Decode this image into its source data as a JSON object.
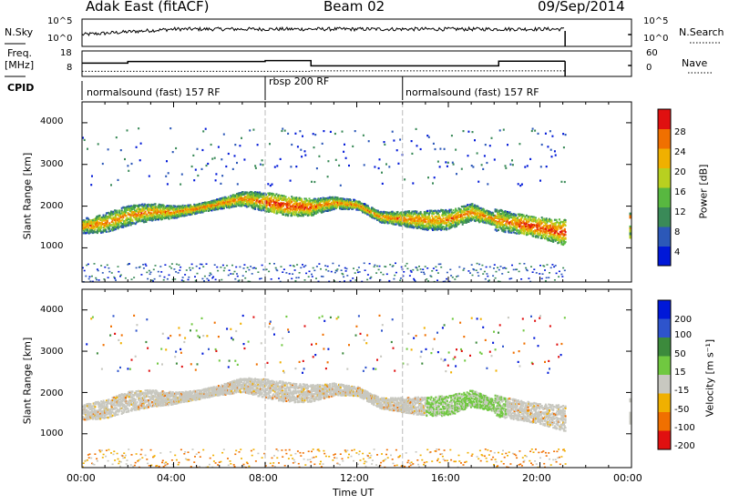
{
  "header": {
    "station": "Adak East (fitACF)",
    "beam": "Beam 02",
    "date": "09/Sep/2014"
  },
  "top_panels": {
    "nsky_label": "N.Sky",
    "nsky_ticks": [
      "10^5",
      "10^0"
    ],
    "nsearch_label": "N.Search",
    "freq_label_1": "Freq.",
    "freq_label_2": "[MHz]",
    "freq_ticks": [
      "18",
      "8"
    ],
    "nave_label": "Nave",
    "nave_ticks": [
      "60",
      "0"
    ],
    "cpid_label": "CPID",
    "cpid_segments": [
      {
        "label": "normalsound (fast) 157 RF",
        "start_h": 0,
        "end_h": 8
      },
      {
        "label": "rbsp 200 RF",
        "start_h": 8,
        "end_h": 14
      },
      {
        "label": "normalsound (fast) 157 RF",
        "start_h": 14,
        "end_h": 21.1
      }
    ],
    "freq_steps_mhz": [
      [
        0,
        13.3
      ],
      [
        2,
        14.2
      ],
      [
        8,
        14.7
      ],
      [
        10,
        11.8
      ],
      [
        18,
        11.8
      ],
      [
        18.2,
        14.4
      ],
      [
        21.1,
        14.4
      ]
    ],
    "nave_level": [
      [
        0,
        12
      ],
      [
        10,
        12
      ],
      [
        10,
        13
      ],
      [
        21.1,
        13
      ]
    ]
  },
  "axes": {
    "x_ticks": [
      "00:00",
      "04:00",
      "08:00",
      "12:00",
      "16:00",
      "20:00",
      "00:00"
    ],
    "x_label": "Time UT",
    "y_label": "Slant Range [km]",
    "y_ticks": [
      "4000",
      "3000",
      "2000",
      "1000"
    ],
    "power_cb_label": "Power [dB]",
    "power_ticks": [
      "28",
      "24",
      "20",
      "16",
      "12",
      "8",
      "4"
    ],
    "velocity_cb_label": "Velocity [m s⁻¹]",
    "velocity_ticks": [
      "200",
      "100",
      "50",
      "15",
      "-15",
      "-50",
      "-100",
      "-200"
    ]
  },
  "colors": {
    "power_scale": [
      "#0018d8",
      "#2c58b8",
      "#3a8a58",
      "#58b840",
      "#b8d020",
      "#f0b000",
      "#f07000",
      "#e01010"
    ],
    "velocity_scale": [
      "#0018d8",
      "#2e54cc",
      "#3c8a3c",
      "#70c840",
      "#c8c8c0",
      "#f0b000",
      "#f07000",
      "#e01010"
    ]
  },
  "chart_data": {
    "type": "heatmap",
    "title": "Adak East (fitACF)",
    "subtitle": "Beam 02",
    "xlabel": "Time UT",
    "ylabel": "Slant Range [km]",
    "x_range_hours": [
      0,
      24
    ],
    "y_range_km": [
      180,
      4500
    ],
    "grid": false,
    "panels": [
      {
        "name": "Power",
        "unit": "dB",
        "range": [
          0,
          32
        ]
      },
      {
        "name": "Velocity",
        "unit": "m s⁻¹",
        "range": [
          -250,
          250
        ]
      }
    ],
    "main_echo_band": [
      {
        "t": 0.0,
        "r": 1540
      },
      {
        "t": 1.0,
        "r": 1620
      },
      {
        "t": 2.0,
        "r": 1800
      },
      {
        "t": 3.0,
        "r": 1880
      },
      {
        "t": 4.0,
        "r": 1880
      },
      {
        "t": 5.0,
        "r": 1960
      },
      {
        "t": 6.0,
        "r": 2080
      },
      {
        "t": 7.0,
        "r": 2200
      },
      {
        "t": 8.0,
        "r": 2120
      },
      {
        "t": 9.0,
        "r": 2020
      },
      {
        "t": 10.0,
        "r": 2000
      },
      {
        "t": 11.0,
        "r": 2100
      },
      {
        "t": 12.0,
        "r": 2050
      },
      {
        "t": 13.0,
        "r": 1760
      },
      {
        "t": 14.0,
        "r": 1720
      },
      {
        "t": 15.0,
        "r": 1680
      },
      {
        "t": 16.0,
        "r": 1700
      },
      {
        "t": 17.0,
        "r": 1880
      },
      {
        "t": 18.0,
        "r": 1700
      },
      {
        "t": 19.0,
        "r": 1600
      },
      {
        "t": 20.0,
        "r": 1500
      },
      {
        "t": 21.0,
        "r": 1400
      }
    ],
    "data_gap_hours": [
      21.1,
      23.8
    ]
  }
}
